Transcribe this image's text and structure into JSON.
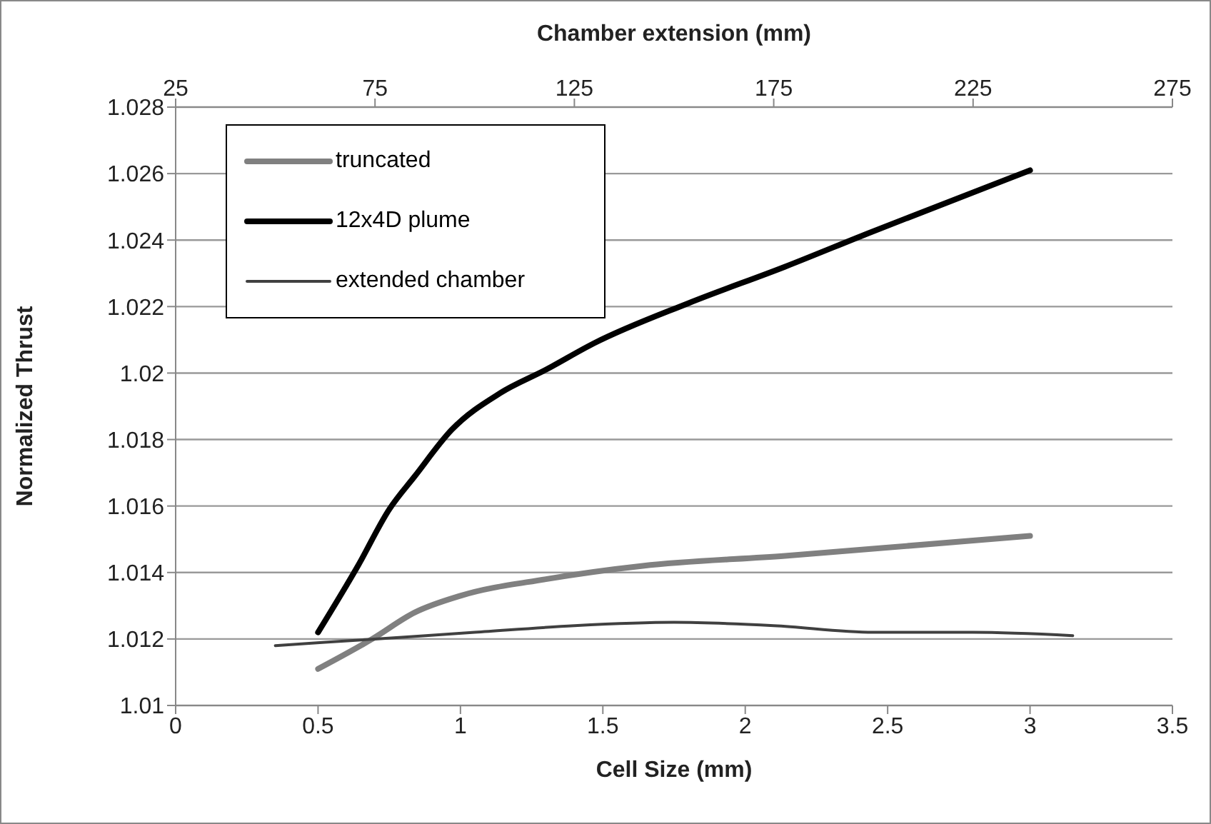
{
  "chart_data": {
    "type": "line",
    "xlabel": "Cell Size (mm)",
    "x2label": "Chamber extension (mm)",
    "ylabel": "Normalized Thrust",
    "xlim": [
      0,
      3.5
    ],
    "xticks": [
      0,
      0.5,
      1,
      1.5,
      2,
      2.5,
      3,
      3.5
    ],
    "x2lim": [
      25,
      275
    ],
    "x2ticks": [
      25,
      75,
      125,
      175,
      225,
      275
    ],
    "ylim": [
      1.01,
      1.028
    ],
    "yticks": [
      1.01,
      1.012,
      1.014,
      1.016,
      1.018,
      1.02,
      1.022,
      1.024,
      1.026,
      1.028
    ],
    "grid": "y",
    "legend": "top left",
    "marker": "none",
    "series": [
      {
        "name": "truncated",
        "color": "#808080",
        "x": [
          0.5,
          0.69,
          0.84,
          1.0,
          1.3,
          1.64,
          2.14,
          3.0
        ],
        "values": [
          1.0111,
          1.012,
          1.0128,
          1.0133,
          1.0138,
          1.0142,
          1.0145,
          1.0151
        ]
      },
      {
        "name": "12x4D plume",
        "color": "#000000",
        "x": [
          0.5,
          0.64,
          0.75,
          0.84,
          0.97,
          1.14,
          1.3,
          1.47,
          1.8,
          2.14,
          2.43,
          3.0
        ],
        "values": [
          1.0122,
          1.0142,
          1.0159,
          1.0169,
          1.0183,
          1.0194,
          1.0201,
          1.0209,
          1.0221,
          1.0232,
          1.0242,
          1.0261
        ]
      },
      {
        "name": "extended chamber",
        "color": "#404040",
        "axis": "x2",
        "x": [
          50,
          75,
          100,
          125,
          150,
          175,
          200,
          225,
          250
        ],
        "values": [
          1.0118,
          1.012,
          1.0122,
          1.0124,
          1.0125,
          1.0124,
          1.0122,
          1.0122,
          1.0121
        ]
      }
    ]
  }
}
